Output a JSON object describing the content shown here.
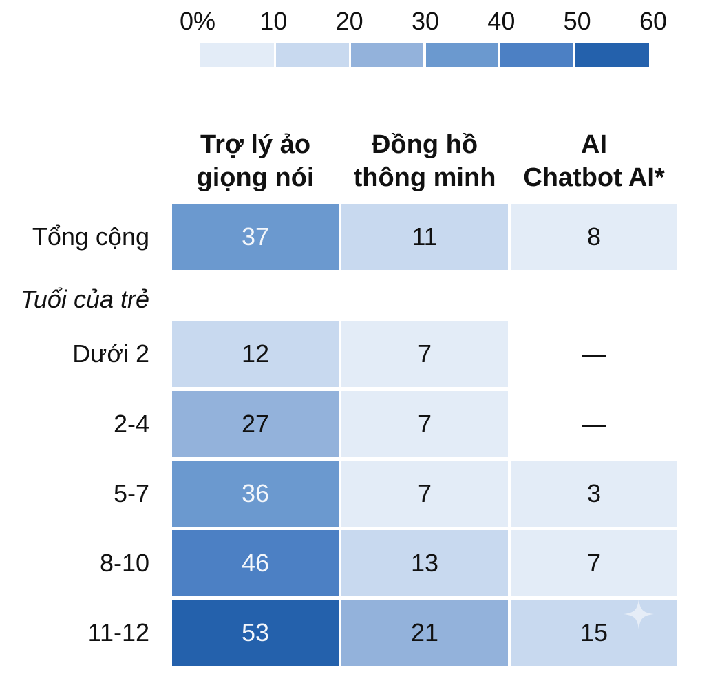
{
  "chart_data": {
    "type": "heatmap",
    "scale": {
      "labels": [
        "0%",
        "10",
        "20",
        "30",
        "40",
        "50",
        "60"
      ],
      "bins": [
        {
          "from": 0,
          "to": 10,
          "color": "#e3ecf7"
        },
        {
          "from": 10,
          "to": 20,
          "color": "#c8d9ef"
        },
        {
          "from": 20,
          "to": 30,
          "color": "#93b2db"
        },
        {
          "from": 30,
          "to": 40,
          "color": "#6b99cf"
        },
        {
          "from": 40,
          "to": 50,
          "color": "#4c80c4"
        },
        {
          "from": 50,
          "to": 60,
          "color": "#2461ac"
        }
      ]
    },
    "columns": [
      {
        "label": [
          "Trợ lý ảo",
          "giọng nói"
        ]
      },
      {
        "label": [
          "Đồng hồ",
          "thông minh"
        ]
      },
      {
        "label": [
          "AI",
          "Chatbot AI*"
        ]
      }
    ],
    "section_label": "Tuổi của trẻ",
    "rows": [
      {
        "label": "Tổng cộng",
        "values": [
          37,
          11,
          8
        ],
        "display": [
          "37",
          "11",
          "8"
        ]
      },
      {
        "label": "Dưới 2",
        "values": [
          12,
          7,
          null
        ],
        "display": [
          "12",
          "7",
          "—"
        ]
      },
      {
        "label": "2-4",
        "values": [
          27,
          7,
          null
        ],
        "display": [
          "27",
          "7",
          "—"
        ]
      },
      {
        "label": "5-7",
        "values": [
          36,
          7,
          3
        ],
        "display": [
          "36",
          "7",
          "3"
        ]
      },
      {
        "label": "8-10",
        "values": [
          46,
          13,
          7
        ],
        "display": [
          "46",
          "13",
          "7"
        ]
      },
      {
        "label": "11-12",
        "values": [
          53,
          21,
          15
        ],
        "display": [
          "53",
          "21",
          "15"
        ]
      }
    ],
    "colors": {
      "text_dark": "#111111",
      "text_light": "#f4f7fb",
      "missing_cell": "#ffffff"
    }
  }
}
